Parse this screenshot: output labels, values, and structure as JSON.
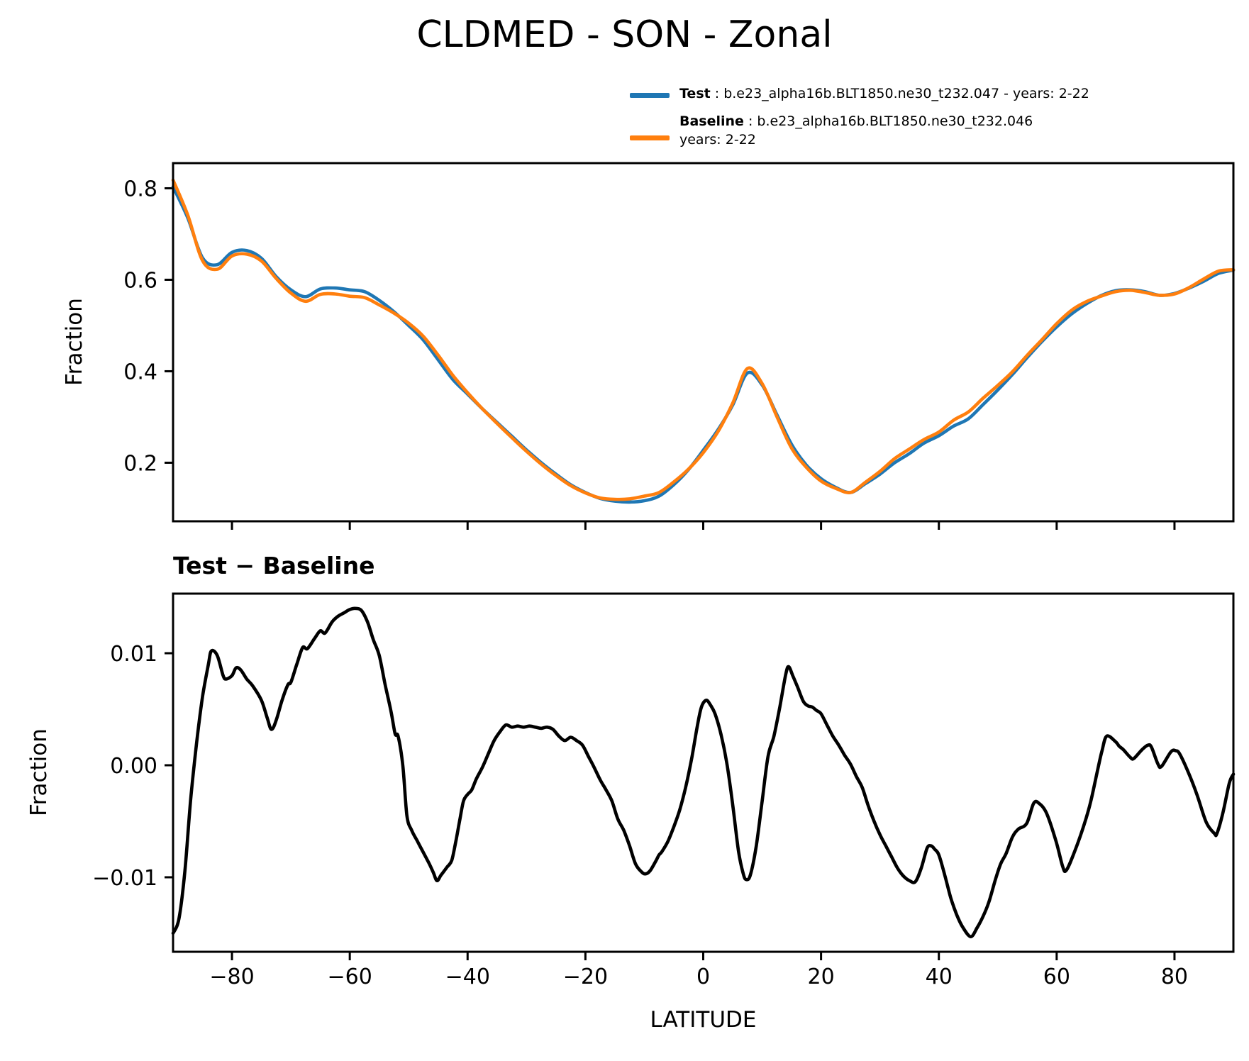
{
  "colors": {
    "background": "#ffffff",
    "text": "#000000",
    "test_line": "#1f77b4",
    "baseline_line": "#ff7f0e",
    "diff_line": "#000000"
  },
  "title": "CLDMED - SON - Zonal",
  "legend": {
    "items": [
      {
        "label_bold": "Test",
        "label_rest": " : b.e23_alpha16b.BLT1850.ne30_t232.047 - years: 2-22",
        "label_line2": "",
        "color": "#1f77b4"
      },
      {
        "label_bold": "Baseline",
        "label_rest": " : b.e23_alpha16b.BLT1850.ne30_t232.046",
        "label_line2": "years: 2-22",
        "color": "#ff7f0e"
      }
    ]
  },
  "chart_data": [
    {
      "type": "line",
      "title": "",
      "xlabel": "",
      "ylabel": "Fraction",
      "xlim": [
        -90,
        90
      ],
      "ylim": [
        0.072,
        0.855
      ],
      "xticks": [
        -80,
        -60,
        -40,
        -20,
        0,
        20,
        40,
        60,
        80
      ],
      "x_tick_labels": [
        "−80",
        "−60",
        "−40",
        "−20",
        "0",
        "20",
        "40",
        "60",
        "80"
      ],
      "show_x_tick_labels": false,
      "yticks": [
        0.2,
        0.4,
        0.6,
        0.8
      ],
      "y_tick_labels": [
        "0.2",
        "0.4",
        "0.6",
        "0.8"
      ],
      "grid": false,
      "legend_position": "above axes, upper right",
      "x": [
        -90,
        -87.5,
        -85,
        -82.5,
        -80,
        -77.5,
        -75,
        -72.5,
        -70,
        -67.5,
        -65,
        -62.5,
        -60,
        -57.5,
        -55,
        -52.5,
        -50,
        -47.5,
        -45,
        -42.5,
        -40,
        -37.5,
        -35,
        -32.5,
        -30,
        -27.5,
        -25,
        -22.5,
        -20,
        -17.5,
        -15,
        -12.5,
        -10,
        -7.5,
        -5,
        -2.5,
        0,
        2.5,
        5,
        7.5,
        10,
        12.5,
        15,
        17.5,
        20,
        22.5,
        25,
        27.5,
        30,
        32.5,
        35,
        37.5,
        40,
        42.5,
        45,
        47.5,
        50,
        52.5,
        55,
        57.5,
        60,
        62.5,
        65,
        67.5,
        70,
        72.5,
        75,
        77.5,
        80,
        82.5,
        85,
        87.5,
        90
      ],
      "series": [
        {
          "name": "Test",
          "color": "#1f77b4",
          "values": [
            0.803,
            0.735,
            0.648,
            0.633,
            0.66,
            0.664,
            0.647,
            0.607,
            0.578,
            0.563,
            0.58,
            0.582,
            0.578,
            0.574,
            0.555,
            0.53,
            0.5,
            0.468,
            0.425,
            0.382,
            0.35,
            0.318,
            0.288,
            0.258,
            0.228,
            0.2,
            0.175,
            0.152,
            0.135,
            0.122,
            0.116,
            0.114,
            0.117,
            0.127,
            0.152,
            0.185,
            0.227,
            0.272,
            0.326,
            0.396,
            0.37,
            0.305,
            0.24,
            0.195,
            0.165,
            0.146,
            0.135,
            0.154,
            0.175,
            0.2,
            0.22,
            0.243,
            0.259,
            0.28,
            0.296,
            0.327,
            0.359,
            0.393,
            0.43,
            0.465,
            0.497,
            0.525,
            0.547,
            0.565,
            0.576,
            0.578,
            0.574,
            0.566,
            0.57,
            0.582,
            0.597,
            0.614,
            0.621
          ]
        },
        {
          "name": "Baseline",
          "color": "#ff7f0e",
          "values": [
            0.818,
            0.741,
            0.642,
            0.623,
            0.652,
            0.656,
            0.641,
            0.603,
            0.571,
            0.553,
            0.568,
            0.569,
            0.564,
            0.561,
            0.545,
            0.527,
            0.505,
            0.476,
            0.435,
            0.391,
            0.353,
            0.318,
            0.286,
            0.255,
            0.225,
            0.197,
            0.172,
            0.15,
            0.134,
            0.123,
            0.12,
            0.121,
            0.127,
            0.135,
            0.158,
            0.186,
            0.222,
            0.268,
            0.33,
            0.406,
            0.373,
            0.301,
            0.232,
            0.19,
            0.16,
            0.144,
            0.135,
            0.157,
            0.181,
            0.209,
            0.23,
            0.251,
            0.267,
            0.293,
            0.311,
            0.341,
            0.369,
            0.399,
            0.435,
            0.469,
            0.504,
            0.533,
            0.552,
            0.564,
            0.574,
            0.577,
            0.572,
            0.566,
            0.569,
            0.583,
            0.602,
            0.619,
            0.622
          ]
        }
      ]
    },
    {
      "type": "line",
      "title": "Test − Baseline",
      "xlabel": "LATITUDE",
      "ylabel": "Fraction",
      "xlim": [
        -90,
        90
      ],
      "ylim": [
        -0.01665,
        0.01532
      ],
      "xticks": [
        -80,
        -60,
        -40,
        -20,
        0,
        20,
        40,
        60,
        80
      ],
      "x_tick_labels": [
        "−80",
        "−60",
        "−40",
        "−20",
        "0",
        "20",
        "40",
        "60",
        "80"
      ],
      "show_x_tick_labels": true,
      "yticks": [
        -0.01,
        0.0,
        0.01
      ],
      "y_tick_labels": [
        "−0.01",
        "0.00",
        "0.01"
      ],
      "grid": false,
      "series": [
        {
          "name": "Test − Baseline",
          "color": "#000000",
          "points": [
            [
              -90,
              -0.015
            ],
            [
              -89,
              -0.0137
            ],
            [
              -88,
              -0.0095
            ],
            [
              -87,
              -0.003
            ],
            [
              -86,
              0.002
            ],
            [
              -85,
              0.0061
            ],
            [
              -84,
              0.009
            ],
            [
              -83.5,
              0.0102
            ],
            [
              -82.5,
              0.0098
            ],
            [
              -81.5,
              0.008
            ],
            [
              -81,
              0.0077
            ],
            [
              -80,
              0.008
            ],
            [
              -79.3,
              0.0087
            ],
            [
              -78.5,
              0.0085
            ],
            [
              -77.5,
              0.0077
            ],
            [
              -76.5,
              0.0071
            ],
            [
              -75,
              0.0058
            ],
            [
              -74,
              0.0042
            ],
            [
              -73.3,
              0.0032
            ],
            [
              -72.5,
              0.004
            ],
            [
              -71.5,
              0.0058
            ],
            [
              -70.5,
              0.0072
            ],
            [
              -70,
              0.0074
            ],
            [
              -69,
              0.009
            ],
            [
              -68,
              0.0105
            ],
            [
              -67.2,
              0.0104
            ],
            [
              -66,
              0.0113
            ],
            [
              -65,
              0.012
            ],
            [
              -64.2,
              0.0118
            ],
            [
              -63,
              0.0128
            ],
            [
              -62,
              0.0133
            ],
            [
              -61,
              0.0136
            ],
            [
              -60,
              0.0139
            ],
            [
              -59,
              0.014
            ],
            [
              -58,
              0.0138
            ],
            [
              -57,
              0.0128
            ],
            [
              -56,
              0.0112
            ],
            [
              -55,
              0.0098
            ],
            [
              -54,
              0.0072
            ],
            [
              -53,
              0.0048
            ],
            [
              -52.3,
              0.0028
            ],
            [
              -51.8,
              0.0026
            ],
            [
              -51,
              0.0
            ],
            [
              -50.3,
              -0.0045
            ],
            [
              -49.5,
              -0.0058
            ],
            [
              -48.5,
              -0.0068
            ],
            [
              -47.5,
              -0.0078
            ],
            [
              -46.5,
              -0.0088
            ],
            [
              -45.8,
              -0.0096
            ],
            [
              -45.2,
              -0.0103
            ],
            [
              -44.5,
              -0.0098
            ],
            [
              -43.5,
              -0.0091
            ],
            [
              -42.7,
              -0.0085
            ],
            [
              -42,
              -0.0068
            ],
            [
              -41.3,
              -0.0048
            ],
            [
              -40.7,
              -0.0032
            ],
            [
              -40,
              -0.0026
            ],
            [
              -39.3,
              -0.0022
            ],
            [
              -38.5,
              -0.0012
            ],
            [
              -37.5,
              -0.0002
            ],
            [
              -36.5,
              0.001
            ],
            [
              -35.5,
              0.0022
            ],
            [
              -34.5,
              0.003
            ],
            [
              -33.5,
              0.0036
            ],
            [
              -32.5,
              0.0034
            ],
            [
              -31.5,
              0.0035
            ],
            [
              -30.5,
              0.0034
            ],
            [
              -29.5,
              0.0035
            ],
            [
              -28.5,
              0.0034
            ],
            [
              -27.5,
              0.0033
            ],
            [
              -26.5,
              0.0034
            ],
            [
              -25.5,
              0.0032
            ],
            [
              -24.5,
              0.0026
            ],
            [
              -23.5,
              0.0022
            ],
            [
              -22.5,
              0.0025
            ],
            [
              -21.5,
              0.0022
            ],
            [
              -20.5,
              0.0018
            ],
            [
              -19.5,
              0.0008
            ],
            [
              -18.5,
              -0.0002
            ],
            [
              -17.5,
              -0.0013
            ],
            [
              -16.5,
              -0.0022
            ],
            [
              -15.5,
              -0.0032
            ],
            [
              -14.5,
              -0.0048
            ],
            [
              -13.5,
              -0.0058
            ],
            [
              -12.5,
              -0.0072
            ],
            [
              -11.5,
              -0.0088
            ],
            [
              -10.5,
              -0.0095
            ],
            [
              -9.8,
              -0.0097
            ],
            [
              -9,
              -0.0094
            ],
            [
              -8,
              -0.0085
            ],
            [
              -7.5,
              -0.008
            ],
            [
              -7,
              -0.0077
            ],
            [
              -6,
              -0.0068
            ],
            [
              -5,
              -0.0055
            ],
            [
              -4,
              -0.004
            ],
            [
              -3,
              -0.002
            ],
            [
              -2,
              0.0005
            ],
            [
              -1,
              0.0035
            ],
            [
              -0.3,
              0.0052
            ],
            [
              0.5,
              0.0058
            ],
            [
              1.2,
              0.0054
            ],
            [
              2,
              0.0046
            ],
            [
              3,
              0.0028
            ],
            [
              4,
              0.0002
            ],
            [
              5,
              -0.0035
            ],
            [
              6,
              -0.0077
            ],
            [
              6.8,
              -0.0097
            ],
            [
              7.3,
              -0.0102
            ],
            [
              8,
              -0.0098
            ],
            [
              9,
              -0.0072
            ],
            [
              10,
              -0.0032
            ],
            [
              11,
              0.0008
            ],
            [
              12,
              0.0026
            ],
            [
              13,
              0.0052
            ],
            [
              14,
              0.0081
            ],
            [
              14.5,
              0.0088
            ],
            [
              15.2,
              0.008
            ],
            [
              16,
              0.007
            ],
            [
              17,
              0.0057
            ],
            [
              17.8,
              0.0053
            ],
            [
              18.5,
              0.0052
            ],
            [
              19.2,
              0.0049
            ],
            [
              20,
              0.0046
            ],
            [
              21,
              0.0036
            ],
            [
              22,
              0.0026
            ],
            [
              23,
              0.0018
            ],
            [
              24,
              0.0009
            ],
            [
              25,
              0.0001
            ],
            [
              26,
              -0.001
            ],
            [
              27,
              -0.002
            ],
            [
              28,
              -0.0036
            ],
            [
              29,
              -0.005
            ],
            [
              30,
              -0.0062
            ],
            [
              31,
              -0.0072
            ],
            [
              32,
              -0.0082
            ],
            [
              33,
              -0.0092
            ],
            [
              34,
              -0.0099
            ],
            [
              35,
              -0.0103
            ],
            [
              36,
              -0.0104
            ],
            [
              37,
              -0.0092
            ],
            [
              38,
              -0.0074
            ],
            [
              38.7,
              -0.0072
            ],
            [
              39.3,
              -0.0075
            ],
            [
              40,
              -0.008
            ],
            [
              41,
              -0.0098
            ],
            [
              42,
              -0.0118
            ],
            [
              43,
              -0.0133
            ],
            [
              44,
              -0.0144
            ],
            [
              45.4,
              -0.0153
            ],
            [
              46.5,
              -0.0145
            ],
            [
              47.5,
              -0.0135
            ],
            [
              48.5,
              -0.0122
            ],
            [
              49.6,
              -0.0102
            ],
            [
              50.5,
              -0.0088
            ],
            [
              51.4,
              -0.0079
            ],
            [
              52.5,
              -0.0064
            ],
            [
              53.5,
              -0.0057
            ],
            [
              54.9,
              -0.0052
            ],
            [
              56.1,
              -0.0034
            ],
            [
              57,
              -0.0034
            ],
            [
              58.3,
              -0.0043
            ],
            [
              59.9,
              -0.0068
            ],
            [
              61,
              -0.009
            ],
            [
              61.6,
              -0.0094
            ],
            [
              62.9,
              -0.0079
            ],
            [
              64.6,
              -0.0054
            ],
            [
              65.8,
              -0.0032
            ],
            [
              67,
              -0.0003
            ],
            [
              67.7,
              0.0013
            ],
            [
              68.5,
              0.0026
            ],
            [
              70,
              0.0021
            ],
            [
              70.6,
              0.0017
            ],
            [
              71.3,
              0.0014
            ],
            [
              72.5,
              0.0007
            ],
            [
              73.1,
              0.0006
            ],
            [
              74.5,
              0.0014
            ],
            [
              75.5,
              0.0018
            ],
            [
              76.1,
              0.0016
            ],
            [
              77.2,
              0.0001
            ],
            [
              77.8,
              -0.0001
            ],
            [
              79.4,
              0.0012
            ],
            [
              80.2,
              0.0013
            ],
            [
              80.9,
              0.001
            ],
            [
              82.4,
              -0.0007
            ],
            [
              83.8,
              -0.0026
            ],
            [
              85.4,
              -0.0051
            ],
            [
              86.8,
              -0.0061
            ],
            [
              87.2,
              -0.0061
            ],
            [
              88.2,
              -0.0043
            ],
            [
              89.3,
              -0.0016
            ],
            [
              90,
              -0.0008
            ]
          ]
        }
      ]
    }
  ]
}
